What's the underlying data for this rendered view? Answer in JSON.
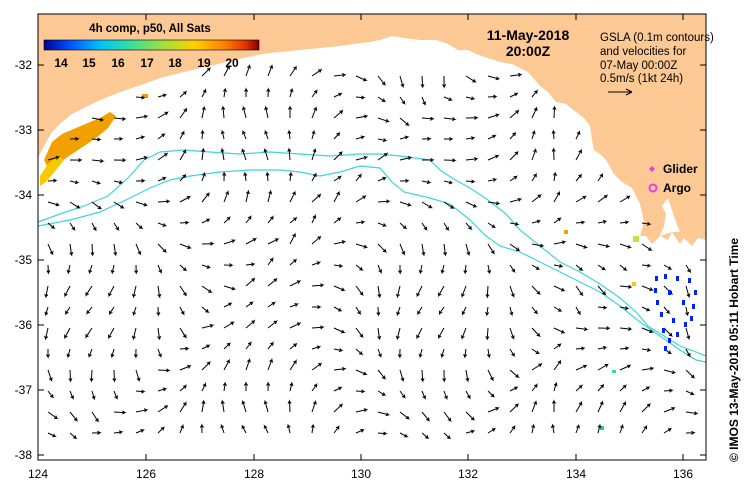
{
  "map": {
    "date": "11-May-2018",
    "time": "20:00Z",
    "colorbar": {
      "title": "4h comp, p50, All Sats",
      "ticks": [
        "14",
        "15",
        "16",
        "17",
        "18",
        "19",
        "20"
      ],
      "min": 13.5,
      "max": 21,
      "colors": [
        "#00008f",
        "#0050ff",
        "#00c0ff",
        "#30e0a0",
        "#a0e040",
        "#ffd000",
        "#ff8000",
        "#e03000",
        "#800000"
      ]
    },
    "legend": {
      "line1": "GSLA (0.1m contours)",
      "line2": "and velocities for",
      "line3": "07-May 00:00Z",
      "line4": "0.5m/s (1kt 24h)",
      "glider": "Glider",
      "argo": "Argo"
    },
    "x_axis": {
      "ticks": [
        "124",
        "126",
        "128",
        "130",
        "132",
        "134",
        "136"
      ],
      "range": [
        124,
        136.6
      ]
    },
    "y_axis": {
      "ticks": [
        "-32",
        "-33",
        "-34",
        "-35",
        "-36",
        "-37",
        "-38"
      ],
      "range": [
        -38.1,
        -31.3
      ]
    },
    "credit": "© IMOS 13-May-2018 05:11 Hobart Time",
    "colors": {
      "land": "#fcc894",
      "contour": "#3fd6d6",
      "glider": "#e040e0",
      "argo": "#e040e0"
    }
  }
}
